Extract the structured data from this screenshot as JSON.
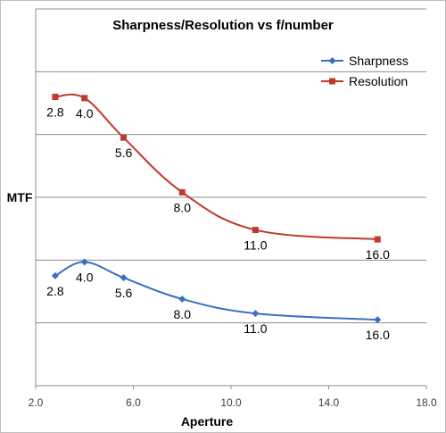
{
  "chart_data": {
    "type": "scatter",
    "title": "Sharpness/Resolution vs f/number",
    "xlabel": "Aperture",
    "ylabel": "MTF",
    "xlim": [
      2.0,
      18.0
    ],
    "x_ticks": [
      "2.0",
      "6.0",
      "10.0",
      "14.0",
      "18.0"
    ],
    "y_ticks_shown": false,
    "ylim": [
      0,
      6
    ],
    "grid": "horizontal",
    "smooth_lines": true,
    "legend_position": "top-right",
    "series": [
      {
        "name": "Sharpness",
        "color": "#3a6fc4",
        "marker": "diamond",
        "x": [
          2.8,
          4.0,
          5.6,
          8.0,
          11.0,
          16.0
        ],
        "y": [
          1.75,
          1.97,
          1.72,
          1.38,
          1.15,
          1.05
        ],
        "labels": [
          "2.8",
          "4.0",
          "5.6",
          "8.0",
          "11.0",
          "16.0"
        ]
      },
      {
        "name": "Resolution",
        "color": "#c0392b",
        "marker": "square",
        "x": [
          2.8,
          4.0,
          5.6,
          8.0,
          11.0,
          16.0
        ],
        "y": [
          4.6,
          4.58,
          3.95,
          3.08,
          2.48,
          2.33
        ],
        "labels": [
          "2.8",
          "4.0",
          "5.6",
          "8.0",
          "11.0",
          "16.0"
        ]
      }
    ]
  }
}
